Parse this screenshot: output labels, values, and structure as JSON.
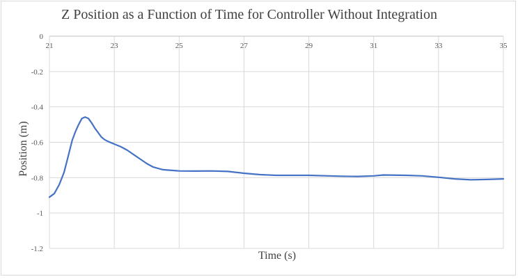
{
  "chart_data": {
    "type": "line",
    "title": "Z Position as a Function of Time  for Controller Without Integration",
    "xlabel": "Time (s)",
    "ylabel": "Position (m)",
    "xlim": [
      21,
      35
    ],
    "ylim": [
      -1.2,
      0
    ],
    "x_ticks": [
      21,
      23,
      25,
      27,
      29,
      31,
      33,
      35
    ],
    "y_ticks": [
      0,
      -0.2,
      -0.4,
      -0.6,
      -0.8,
      -1,
      -1.2
    ],
    "x_tick_labels": [
      "21",
      "23",
      "25",
      "27",
      "29",
      "31",
      "33",
      "35"
    ],
    "y_tick_labels": [
      "0",
      "-0.2",
      "-0.4",
      "-0.6",
      "-0.8",
      "-1",
      "-1.2"
    ],
    "grid": true,
    "legend": "none",
    "series": [
      {
        "color": "#4472c4",
        "x": [
          21.0,
          21.15,
          21.3,
          21.45,
          21.55,
          21.7,
          21.8,
          21.9,
          22.0,
          22.1,
          22.2,
          22.3,
          22.4,
          22.5,
          22.6,
          22.7,
          22.8,
          23.0,
          23.2,
          23.4,
          23.6,
          23.8,
          24.0,
          24.2,
          24.5,
          25.0,
          25.5,
          26.0,
          26.5,
          27.0,
          27.5,
          28.0,
          29.0,
          30.0,
          30.5,
          31.0,
          31.3,
          32.0,
          32.5,
          33.0,
          33.5,
          34.0,
          34.5,
          35.0
        ],
        "y": [
          -0.91,
          -0.89,
          -0.84,
          -0.77,
          -0.7,
          -0.59,
          -0.54,
          -0.5,
          -0.465,
          -0.457,
          -0.465,
          -0.49,
          -0.52,
          -0.545,
          -0.57,
          -0.585,
          -0.595,
          -0.61,
          -0.625,
          -0.645,
          -0.67,
          -0.695,
          -0.72,
          -0.74,
          -0.755,
          -0.762,
          -0.763,
          -0.762,
          -0.765,
          -0.775,
          -0.783,
          -0.787,
          -0.787,
          -0.792,
          -0.793,
          -0.79,
          -0.785,
          -0.787,
          -0.79,
          -0.798,
          -0.807,
          -0.812,
          -0.81,
          -0.807
        ]
      }
    ]
  }
}
